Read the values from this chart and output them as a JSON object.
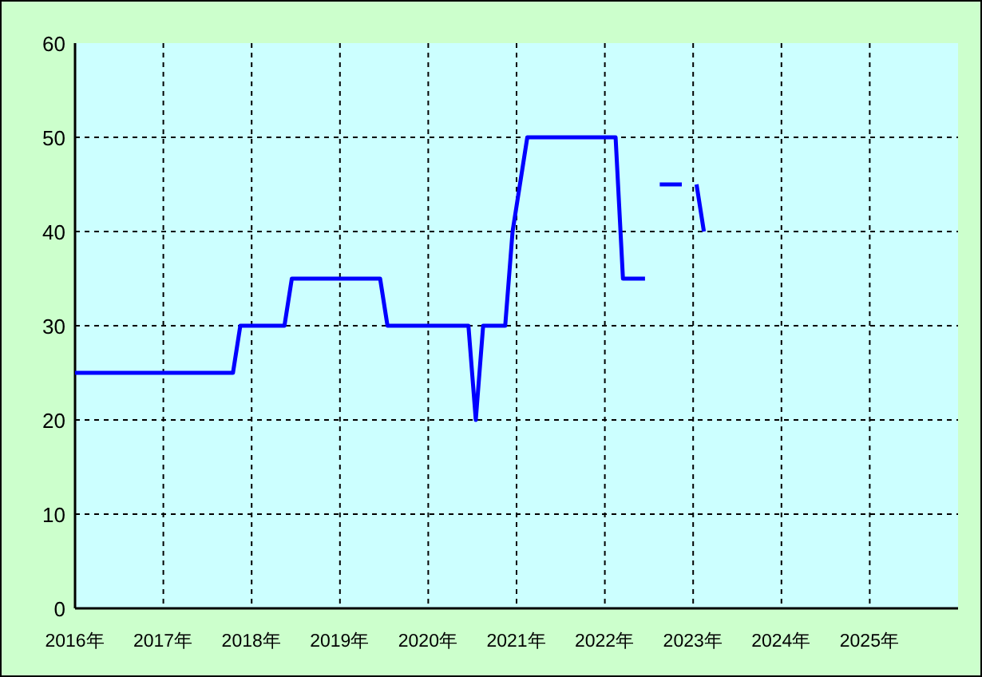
{
  "chart_data": {
    "type": "line",
    "series": [
      {
        "color": "#0000ff",
        "x": [
          "2016-01-01",
          "2017-10-15",
          "2017-11-15",
          "2018-05-15",
          "2018-06-15",
          "2019-06-15",
          "2019-07-15",
          "2020-06-15",
          "2020-07-15",
          "2020-08-15",
          "2020-11-15",
          "2020-12-15",
          "2021-01-15",
          "2021-02-15",
          "2022-02-15",
          "2022-03-15",
          "2022-06-15"
        ],
        "values": [
          25,
          25,
          30,
          30,
          35,
          35,
          30,
          30,
          20,
          30,
          30,
          40,
          45,
          50,
          50,
          35,
          35
        ]
      },
      {
        "color": "#0000ff",
        "x": [
          "2022-08-15",
          "2022-11-15"
        ],
        "values": [
          45,
          45
        ]
      },
      {
        "color": "#0000ff",
        "x": [
          "2023-01-15",
          "2023-02-15"
        ],
        "values": [
          45,
          40
        ]
      }
    ],
    "xlim": [
      "2016-01-01",
      "2026-01-01"
    ],
    "xticks": [
      {
        "value": "2016-01-01",
        "label": "2016年"
      },
      {
        "value": "2017-01-01",
        "label": "2017年"
      },
      {
        "value": "2018-01-01",
        "label": "2018年"
      },
      {
        "value": "2019-01-01",
        "label": "2019年"
      },
      {
        "value": "2020-01-01",
        "label": "2020年"
      },
      {
        "value": "2021-01-01",
        "label": "2021年"
      },
      {
        "value": "2022-01-01",
        "label": "2022年"
      },
      {
        "value": "2023-01-01",
        "label": "2023年"
      },
      {
        "value": "2024-01-01",
        "label": "2024年"
      },
      {
        "value": "2025-01-01",
        "label": "2025年"
      }
    ],
    "ylim": [
      0,
      60
    ],
    "yticks": [
      0,
      10,
      20,
      30,
      40,
      50,
      60
    ],
    "grid": true,
    "marker": "none",
    "line_style": "solid"
  }
}
